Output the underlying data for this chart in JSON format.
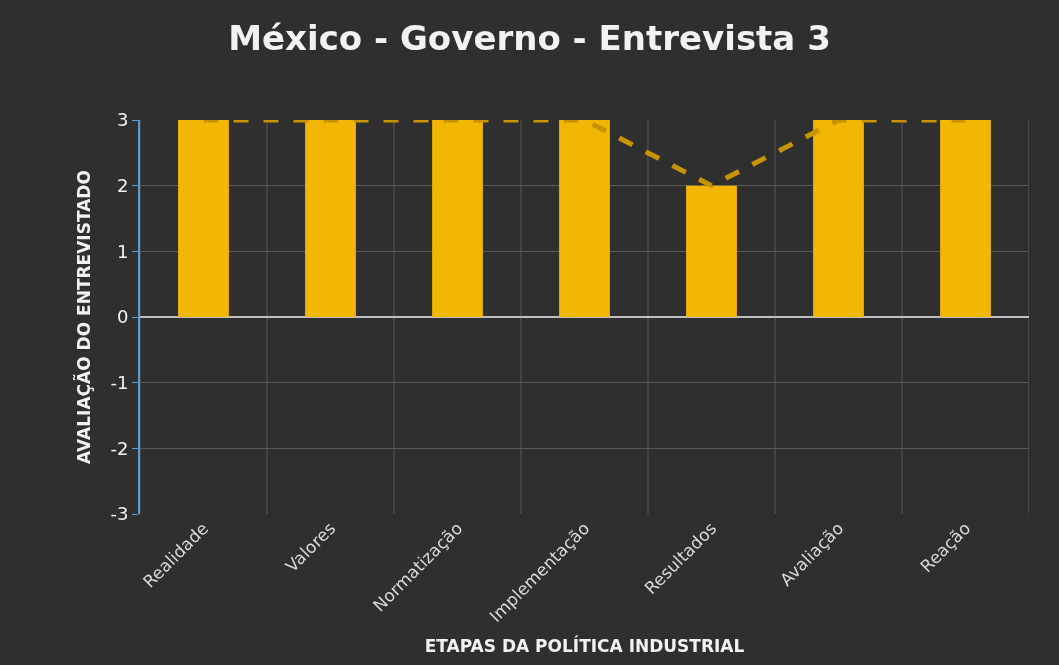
{
  "chart_data": {
    "type": "bar",
    "title": "México - Governo - Entrevista 3",
    "xlabel": "ETAPAS DA POLÍTICA INDUSTRIAL",
    "ylabel": "AVALIAÇÃO DO ENTREVISTADO",
    "categories": [
      "Realidade",
      "Valores",
      "Normatização",
      "Implementação",
      "Resultados",
      "Avaliação",
      "Reação"
    ],
    "series": [
      {
        "color": "#f2b705",
        "values": [
          3,
          3,
          3,
          3,
          2,
          3,
          3
        ]
      },
      {
        "type": "line",
        "color": "#c79400",
        "line_style": "dashed",
        "marker": "none",
        "values": [
          3,
          3,
          3,
          3,
          2,
          3,
          3
        ]
      }
    ],
    "ylim": [
      -3,
      3
    ],
    "yticks": [
      -3,
      -2,
      -1,
      0,
      1,
      2,
      3
    ],
    "grid": true
  }
}
